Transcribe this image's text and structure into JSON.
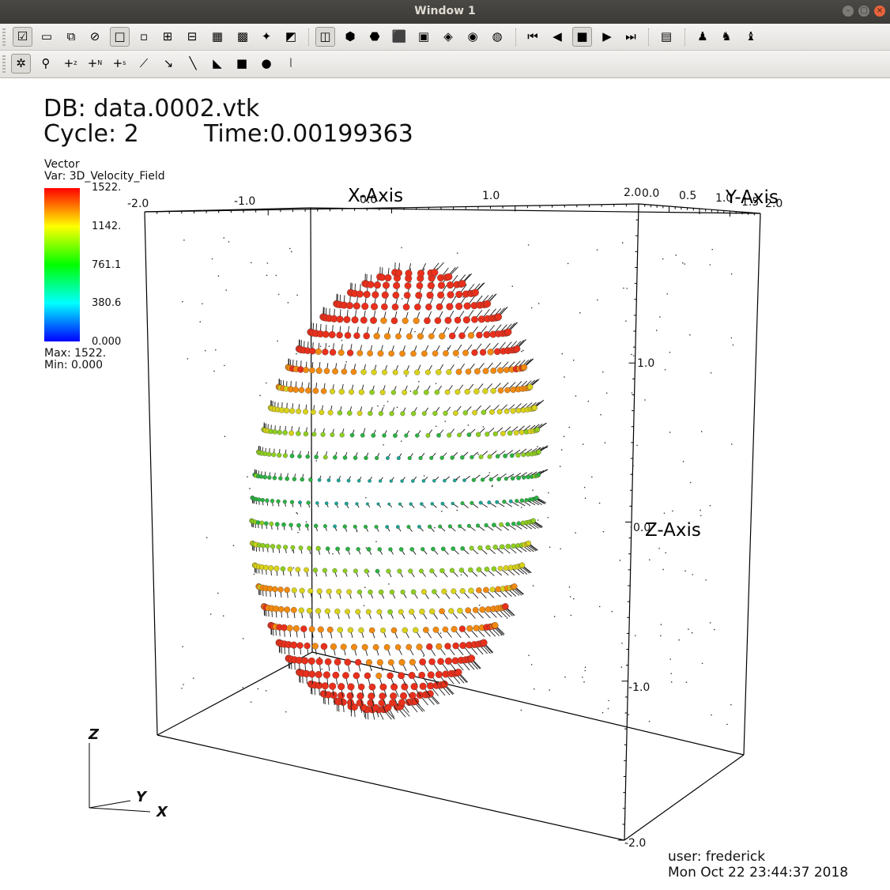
{
  "window": {
    "title": "Window 1",
    "controls": [
      "minimize-icon",
      "maximize-icon",
      "close-icon"
    ]
  },
  "toolbar1": {
    "buttons": [
      {
        "name": "active-window-icon",
        "glyph": "☑",
        "active": true
      },
      {
        "name": "new-window-icon",
        "glyph": "▭"
      },
      {
        "name": "copy-window-icon",
        "glyph": "⧉"
      },
      {
        "name": "delete-window-icon",
        "glyph": "⊘"
      },
      {
        "name": "layout-1x1-icon",
        "glyph": "□",
        "active": true
      },
      {
        "name": "layout-1x2-icon",
        "glyph": "▫"
      },
      {
        "name": "layout-2x2-icon",
        "glyph": "⊞"
      },
      {
        "name": "layout-2x3-icon",
        "glyph": "⊟"
      },
      {
        "name": "layout-2x4-icon",
        "glyph": "▦"
      },
      {
        "name": "layout-3x3-icon",
        "glyph": "▩"
      },
      {
        "name": "lock-view-icon",
        "glyph": "✦"
      },
      {
        "name": "lock-time-icon",
        "glyph": "◩"
      },
      {
        "name": "view-3d-icon",
        "glyph": "◫",
        "active": true
      },
      {
        "name": "recenter-view-icon",
        "glyph": "⬢"
      },
      {
        "name": "undo-view-icon",
        "glyph": "⬣"
      },
      {
        "name": "camera-icon",
        "glyph": "⬛"
      },
      {
        "name": "save-view-icon",
        "glyph": "▣"
      },
      {
        "name": "invert-background-icon",
        "glyph": "◈"
      },
      {
        "name": "spin-mode-icon",
        "glyph": "◉"
      },
      {
        "name": "globe-icon",
        "glyph": "◍"
      },
      {
        "name": "first-frame-icon",
        "glyph": "⏮"
      },
      {
        "name": "reverse-play-icon",
        "glyph": "◀"
      },
      {
        "name": "stop-icon",
        "glyph": "■",
        "active": true
      },
      {
        "name": "play-icon",
        "glyph": "▶"
      },
      {
        "name": "last-frame-icon",
        "glyph": "⏭"
      },
      {
        "name": "lineout-icon",
        "glyph": "▤"
      },
      {
        "name": "pick-icon",
        "glyph": "♟"
      },
      {
        "name": "query-icon",
        "glyph": "♞"
      },
      {
        "name": "clear-pick-icon",
        "glyph": "♝"
      }
    ]
  },
  "toolbar2": {
    "buttons": [
      {
        "name": "navigate-mode-icon",
        "glyph": "✲",
        "active": true
      },
      {
        "name": "zoom-mode-icon",
        "glyph": "⚲"
      },
      {
        "name": "zone-pick-icon",
        "glyph": "+",
        "sub": "z"
      },
      {
        "name": "node-pick-icon",
        "glyph": "+",
        "sub": "N"
      },
      {
        "name": "spreadsheet-pick-icon",
        "glyph": "+",
        "sub": "s"
      },
      {
        "name": "curve-pick-icon",
        "glyph": "⟋"
      },
      {
        "name": "line-icon",
        "glyph": "↘"
      },
      {
        "name": "lineout-tool-icon",
        "glyph": "╲"
      },
      {
        "name": "plane-tool-icon",
        "glyph": "◣"
      },
      {
        "name": "box-tool-icon",
        "glyph": "■"
      },
      {
        "name": "sphere-tool-icon",
        "glyph": "●"
      },
      {
        "name": "point-tool-icon",
        "glyph": "⦚"
      }
    ]
  },
  "annotation": {
    "db": "DB: data.0002.vtk",
    "cycle": "Cycle: 2",
    "time": "Time:0.00199363"
  },
  "legend": {
    "plot_type": "Vector",
    "var": "Var: 3D_Velocity_Field",
    "ticks": [
      "1522.",
      "1142.",
      "761.1",
      "380.6",
      "0.000"
    ],
    "max": "Max:  1522.",
    "min": "Min:  0.000",
    "colors": [
      "#ff0000",
      "#ffff00",
      "#00ff00",
      "#00ffff",
      "#0000ff"
    ]
  },
  "axes": {
    "x_title": "X-Axis",
    "y_title": "Y-Axis",
    "z_title": "Z-Axis",
    "x_ticks": [
      "-2.0",
      "-1.0",
      "0.0",
      "1.0",
      "2.0"
    ],
    "y_ticks": [
      "0.0",
      "0.5",
      "1.0",
      "1.5",
      "2.0"
    ],
    "z_ticks": [
      "1.0",
      "0.0",
      "-1.0",
      "-2.0"
    ]
  },
  "triad": {
    "x": "X",
    "y": "Y",
    "z": "Z"
  },
  "user_info": {
    "user": "user: frederick",
    "date": "Mon Oct 22 23:44:37 2018"
  }
}
